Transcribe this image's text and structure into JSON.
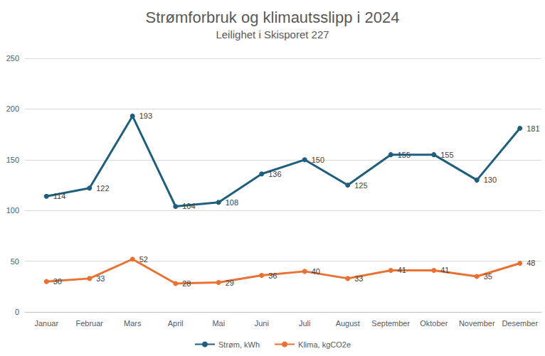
{
  "chart_data": {
    "type": "line",
    "title": "Strømforbruk og klimautsslipp i 2024",
    "subtitle": "Leilighet i Skisporet 227",
    "categories": [
      "Januar",
      "Februar",
      "Mars",
      "April",
      "Mai",
      "Juni",
      "Juli",
      "August",
      "September",
      "Oktober",
      "November",
      "Desember"
    ],
    "series": [
      {
        "name": "Strøm, kWh",
        "color": "#1f5e7c",
        "marker": "circle",
        "line_style": "solid",
        "values": [
          114,
          122,
          193,
          104,
          108,
          136,
          150,
          125,
          155,
          155,
          130,
          181
        ]
      },
      {
        "name": "Klima, kgCO2e",
        "color": "#e97132",
        "marker": "circle",
        "line_style": "solid",
        "values": [
          30,
          33,
          52,
          28,
          29,
          36,
          40,
          33,
          41,
          41,
          35,
          48
        ]
      }
    ],
    "ylim": [
      0,
      250
    ],
    "yticks": [
      0,
      50,
      100,
      150,
      200,
      250
    ],
    "grid": true,
    "legend": "bottom",
    "data_labels": true
  }
}
